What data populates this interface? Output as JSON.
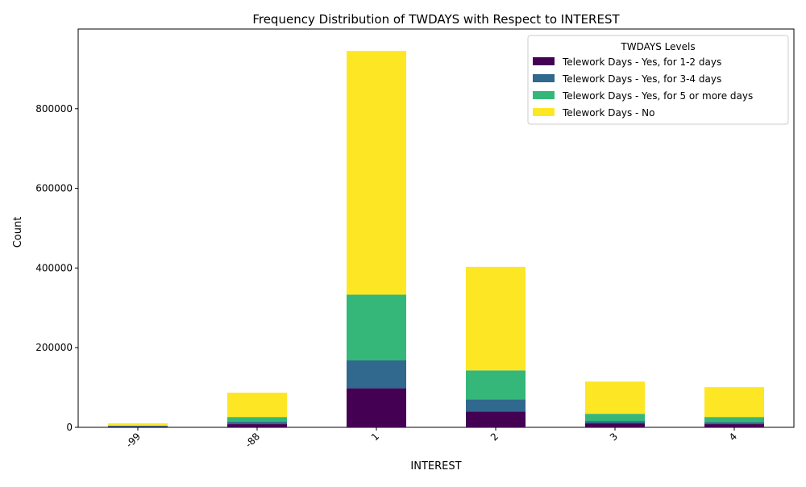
{
  "chart_data": {
    "type": "bar",
    "stacked": true,
    "title": "Frequency Distribution of TWDAYS with Respect to INTEREST",
    "xlabel": "INTEREST",
    "ylabel": "Count",
    "categories": [
      "-99",
      "-88",
      "1",
      "2",
      "3",
      "4"
    ],
    "ylim": [
      0,
      1000000
    ],
    "yticks": [
      0,
      200000,
      400000,
      600000,
      800000
    ],
    "ytick_labels": [
      "0",
      "200000",
      "400000",
      "600000",
      "800000"
    ],
    "legend": {
      "title": "TWDAYS Levels",
      "position": "top-right"
    },
    "grid": false,
    "series": [
      {
        "name": "Telework Days - Yes, for 1-2 days",
        "color": "#440154",
        "values": [
          2000,
          8000,
          98000,
          40000,
          10000,
          8000
        ]
      },
      {
        "name": "Telework Days - Yes, for 3-4 days",
        "color": "#31688e",
        "values": [
          1000,
          6000,
          70000,
          30000,
          6000,
          5000
        ]
      },
      {
        "name": "Telework Days - Yes, for 5 or more days",
        "color": "#35b779",
        "values": [
          1000,
          12000,
          165000,
          73000,
          18000,
          13000
        ]
      },
      {
        "name": "Telework Days - No",
        "color": "#fde725",
        "values": [
          6000,
          61000,
          612000,
          260000,
          81000,
          75000
        ]
      }
    ]
  }
}
